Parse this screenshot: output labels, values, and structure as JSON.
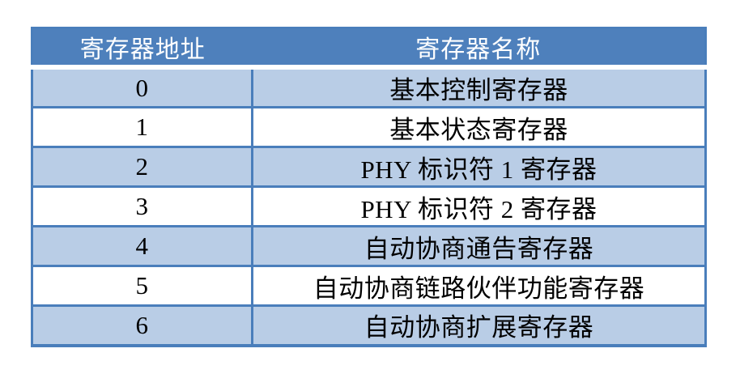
{
  "table": {
    "columns": [
      {
        "label": "寄存器地址"
      },
      {
        "label": "寄存器名称"
      }
    ],
    "rows": [
      {
        "address": "0",
        "name": "基本控制寄存器"
      },
      {
        "address": "1",
        "name": "基本状态寄存器"
      },
      {
        "address": "2",
        "name": "PHY 标识符 1 寄存器"
      },
      {
        "address": "3",
        "name": "PHY 标识符 2 寄存器"
      },
      {
        "address": "4",
        "name": "自动协商通告寄存器"
      },
      {
        "address": "5",
        "name": "自动协商链路伙伴功能寄存器"
      },
      {
        "address": "6",
        "name": "自动协商扩展寄存器"
      }
    ],
    "colors": {
      "page_bg": "#ffffff",
      "header_bg": "#4e80bc",
      "header_text": "#ffffff",
      "row_alt_bg": "#b9cde6",
      "row_bg": "#ffffff",
      "border": "#4a7ebb",
      "cell_text": "#000000"
    }
  }
}
